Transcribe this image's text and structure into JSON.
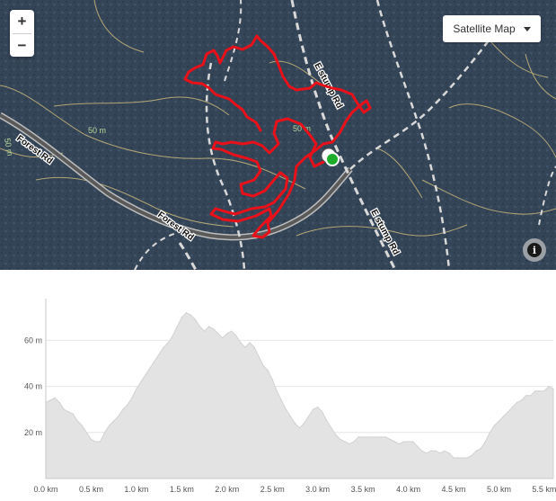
{
  "map": {
    "zoom_in_label": "+",
    "zoom_out_label": "−",
    "layer_selector": {
      "selected": "Satellite Map",
      "icon": "caret-down-icon"
    },
    "info_icon": "info-icon",
    "info_glyph": "i",
    "road_labels": [
      {
        "name": "forest-rd-left",
        "text": "Forest Rd"
      },
      {
        "name": "forest-rd-center",
        "text": "Forest Rd"
      },
      {
        "name": "e-stump-rd-upper",
        "text": "E stump Rd"
      },
      {
        "name": "e-stump-rd-lower",
        "text": "E stump Rd"
      }
    ],
    "contour_labels": [
      {
        "name": "contour-50m-center",
        "text": "50 m"
      },
      {
        "name": "contour-50m-left",
        "text": "50 m"
      },
      {
        "name": "contour-50m-track",
        "text": "50 m"
      }
    ],
    "colors": {
      "terrain": "#354558",
      "track": "#e8111a",
      "roads": "#d9d9d9",
      "contours": "#c9b77a",
      "start_marker": "#1fae2c"
    }
  },
  "chart_data": {
    "type": "area",
    "xlabel": "",
    "ylabel": "",
    "x_unit": "km",
    "y_unit": "m",
    "xlim": [
      0,
      5.6
    ],
    "ylim": [
      0,
      75
    ],
    "grid": true,
    "x_ticks": [
      "0.0 km",
      "0.5 km",
      "1.0 km",
      "1.5 km",
      "2.0 km",
      "2.5 km",
      "3.0 km",
      "3.5 km",
      "4.0 km",
      "4.5 km",
      "5.0 km",
      "5.5 km"
    ],
    "y_ticks": [
      "20 m",
      "40 m",
      "60 m"
    ],
    "series": [
      {
        "x": [
          0,
          0.05,
          0.1,
          0.15,
          0.2,
          0.25,
          0.3,
          0.35,
          0.4,
          0.45,
          0.5,
          0.55,
          0.6,
          0.65,
          0.7,
          0.75,
          0.8,
          0.85,
          0.9,
          0.95,
          1.0,
          1.05,
          1.1,
          1.15,
          1.2,
          1.25,
          1.3,
          1.35,
          1.4,
          1.45,
          1.5,
          1.55,
          1.6,
          1.65,
          1.7,
          1.75,
          1.8,
          1.85,
          1.9,
          1.95,
          2.0,
          2.05,
          2.1,
          2.15,
          2.2,
          2.25,
          2.3,
          2.35,
          2.4,
          2.45,
          2.5,
          2.55,
          2.6,
          2.65,
          2.7,
          2.75,
          2.8,
          2.85,
          2.9,
          2.95,
          3.0,
          3.05,
          3.1,
          3.15,
          3.2,
          3.25,
          3.3,
          3.35,
          3.4,
          3.45,
          3.5,
          3.55,
          3.6,
          3.65,
          3.7,
          3.75,
          3.8,
          3.85,
          3.9,
          3.95,
          4.0,
          4.05,
          4.1,
          4.15,
          4.2,
          4.25,
          4.3,
          4.35,
          4.4,
          4.45,
          4.5,
          4.55,
          4.6,
          4.65,
          4.7,
          4.75,
          4.8,
          4.85,
          4.9,
          4.95,
          5.0,
          5.05,
          5.1,
          5.15,
          5.2,
          5.25,
          5.3,
          5.35,
          5.4,
          5.45,
          5.5,
          5.55,
          5.6
        ],
        "y": [
          33,
          34,
          35,
          33,
          30,
          29,
          28,
          25,
          23,
          20,
          17,
          16,
          16,
          20,
          23,
          25,
          27,
          30,
          32,
          35,
          39,
          42,
          45,
          48,
          51,
          54,
          57,
          59,
          62,
          66,
          70,
          72,
          71,
          69,
          66,
          64,
          66,
          65,
          63,
          61,
          63,
          64,
          62,
          59,
          57,
          59,
          57,
          53,
          49,
          47,
          43,
          38,
          34,
          30,
          27,
          24,
          22,
          24,
          27,
          30,
          31,
          29,
          25,
          22,
          19,
          17,
          16,
          15,
          16,
          18,
          18,
          18,
          18,
          18,
          18,
          18,
          17,
          16,
          15,
          16,
          16,
          16,
          14,
          12,
          11,
          12,
          12,
          11,
          12,
          11,
          9,
          9,
          9,
          9,
          10,
          12,
          13,
          16,
          20,
          23,
          25,
          27,
          29,
          31,
          33,
          34,
          36,
          36,
          38,
          38,
          38,
          40,
          39
        ]
      }
    ]
  }
}
